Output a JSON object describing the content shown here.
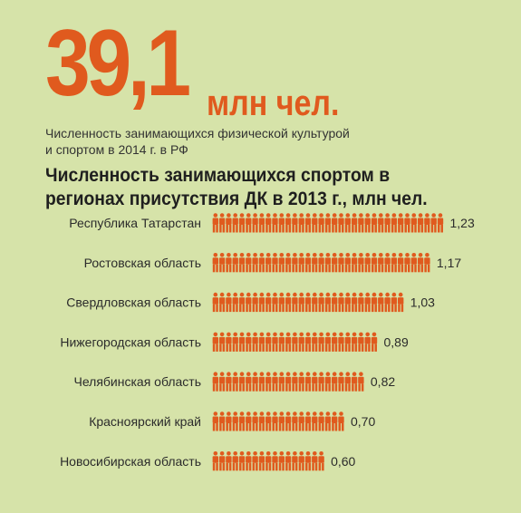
{
  "headline": {
    "number": "39,1",
    "unit": "млн чел."
  },
  "subtitle": {
    "line1": "Численность занимающихся физической культурой",
    "line2": "и спортом в 2014 г. в РФ"
  },
  "colors": {
    "background": "#d6e3a9",
    "accent": "#e05a1e",
    "text": "#2b2b2b"
  },
  "chart_data": {
    "type": "bar",
    "orientation": "horizontal",
    "icon": "person-icon",
    "title": "Численность занимающихся спортом в регионах присутствия ДК в 2013 г., млн чел.",
    "categories": [
      "Республика Татарстан",
      "Ростовская область",
      "Свердловская область",
      "Нижегородская область",
      "Челябинская область",
      "Красноярский край",
      "Новосибирская область"
    ],
    "values": [
      1.23,
      1.17,
      1.03,
      0.89,
      0.82,
      0.7,
      0.6
    ],
    "value_labels": [
      "1,23",
      "1,17",
      "1,03",
      "0,89",
      "0,82",
      "0,70",
      "0,60"
    ],
    "grid": false,
    "legend": "none"
  }
}
